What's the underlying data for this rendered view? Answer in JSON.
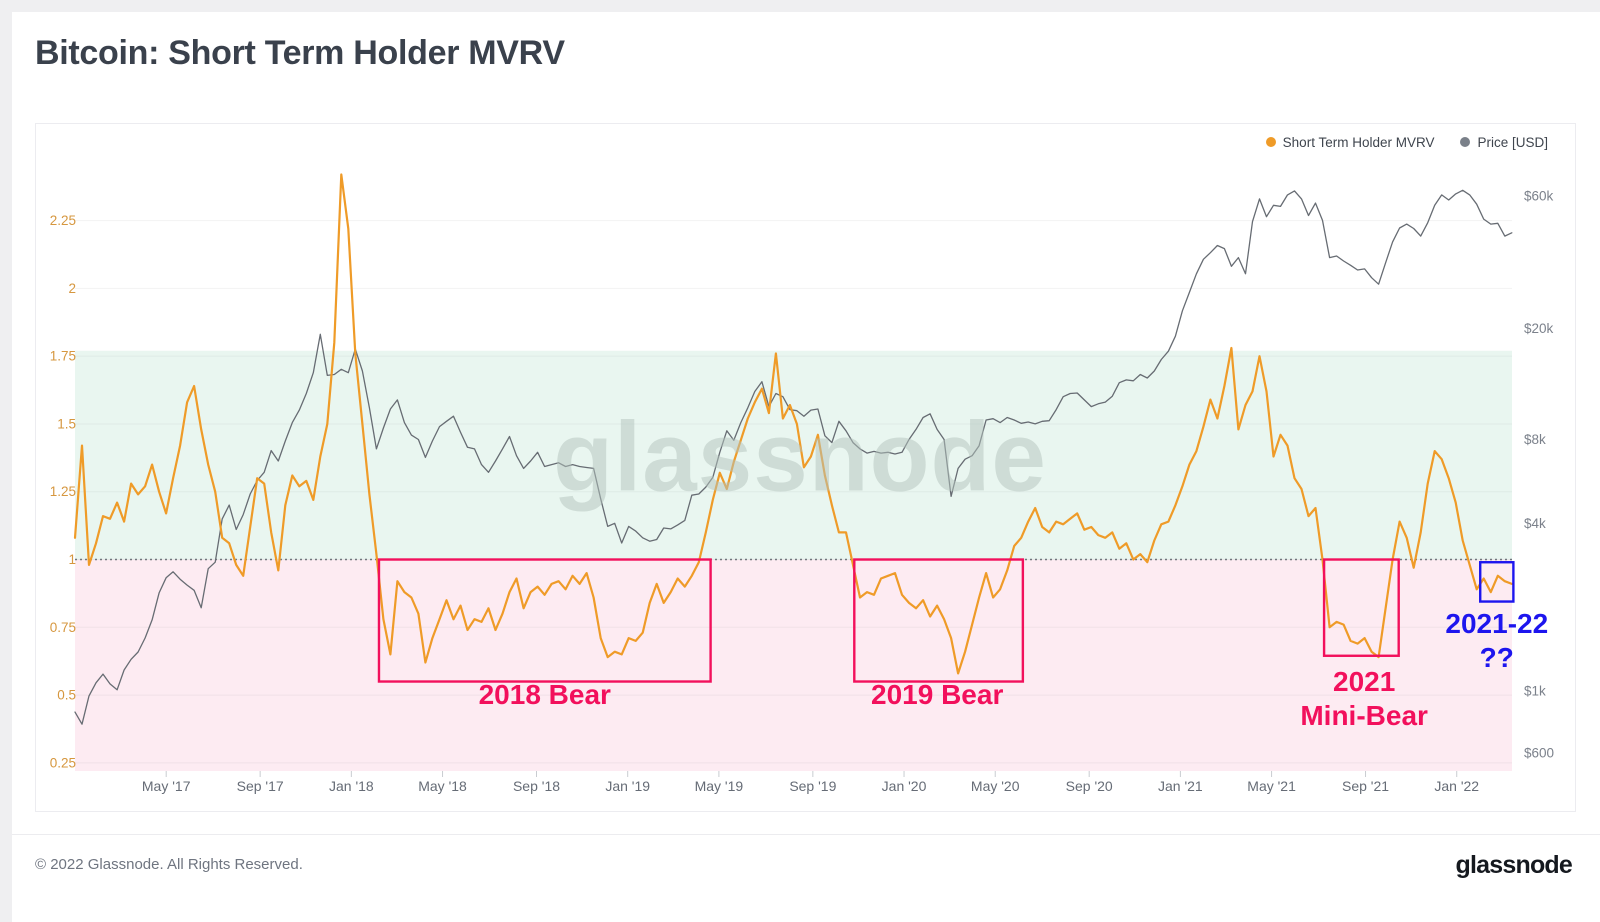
{
  "header": {
    "title": "Bitcoin: Short Term Holder MVRV"
  },
  "legend": [
    {
      "label": "Short Term Holder MVRV",
      "color": "#EF9B28"
    },
    {
      "label": "Price [USD]",
      "color": "#7A8089"
    }
  ],
  "watermark": "glassnode",
  "footer": {
    "copyright": "© 2022 Glassnode. All Rights Reserved.",
    "logo_text": "glassnode"
  },
  "chart_data": {
    "type": "line",
    "title": "Bitcoin: Short Term Holder MVRV",
    "x_axis": {
      "unit": "decimal_year",
      "min": 2017.0,
      "max": 2022.2,
      "ticks": [
        [
          "May '17",
          2017.33
        ],
        [
          "Sep '17",
          2017.67
        ],
        [
          "Jan '18",
          2018.0
        ],
        [
          "May '18",
          2018.33
        ],
        [
          "Sep '18",
          2018.67
        ],
        [
          "Jan '19",
          2019.0
        ],
        [
          "May '19",
          2019.33
        ],
        [
          "Sep '19",
          2019.67
        ],
        [
          "Jan '20",
          2020.0
        ],
        [
          "May '20",
          2020.33
        ],
        [
          "Sep '20",
          2020.67
        ],
        [
          "Jan '21",
          2021.0
        ],
        [
          "May '21",
          2021.33
        ],
        [
          "Sep '21",
          2021.67
        ],
        [
          "Jan '22",
          2022.0
        ]
      ]
    },
    "y_axis_left": {
      "label": "Short Term Holder MVRV",
      "scale": "linear",
      "min": 0.22,
      "max": 2.61,
      "tick_color": "#D6973F",
      "ticks": [
        0.25,
        0.5,
        0.75,
        1,
        1.25,
        1.5,
        1.75,
        2,
        2.25
      ]
    },
    "y_axis_right": {
      "label": "Price [USD]",
      "scale": "log",
      "min": 516,
      "max": 109600,
      "tick_color": "#7B818B",
      "ticks": [
        [
          "$60k",
          60000
        ],
        [
          "$20k",
          20000
        ],
        [
          "$8k",
          8000
        ],
        [
          "$4k",
          4000
        ],
        [
          "$1k",
          1000
        ],
        [
          "$600",
          600
        ]
      ]
    },
    "bands": [
      {
        "name": "above-cost-basis",
        "v_from": 1.0,
        "v_to": 1.77,
        "color": "#E9F6F0"
      },
      {
        "name": "below-cost-basis",
        "v_from": 0.22,
        "v_to": 1.0,
        "color": "#FDEBF2"
      }
    ],
    "threshold": {
      "v": 1.0,
      "color": "#71767D",
      "style": "dotted"
    },
    "grid": {
      "on": true,
      "color": "#9aa0a6",
      "opacity": 0.13
    },
    "series": [
      {
        "name": "Short Term Holder MVRV",
        "axis": "left",
        "color": "#EF9B28",
        "width": 2.2,
        "t_start": 2017.0,
        "t_step": 0.025362,
        "values": [
          1.08,
          1.42,
          0.98,
          1.06,
          1.16,
          1.15,
          1.21,
          1.14,
          1.28,
          1.24,
          1.27,
          1.35,
          1.25,
          1.17,
          1.3,
          1.42,
          1.58,
          1.64,
          1.48,
          1.35,
          1.25,
          1.08,
          1.06,
          0.98,
          0.94,
          1.12,
          1.3,
          1.28,
          1.1,
          0.96,
          1.2,
          1.31,
          1.27,
          1.29,
          1.22,
          1.38,
          1.5,
          1.8,
          2.42,
          2.22,
          1.76,
          1.5,
          1.24,
          1.02,
          0.78,
          0.65,
          0.92,
          0.88,
          0.86,
          0.8,
          0.62,
          0.71,
          0.78,
          0.85,
          0.78,
          0.83,
          0.74,
          0.78,
          0.77,
          0.82,
          0.74,
          0.8,
          0.88,
          0.93,
          0.82,
          0.88,
          0.9,
          0.87,
          0.91,
          0.92,
          0.89,
          0.94,
          0.91,
          0.95,
          0.86,
          0.71,
          0.64,
          0.66,
          0.65,
          0.71,
          0.7,
          0.73,
          0.84,
          0.91,
          0.84,
          0.88,
          0.93,
          0.9,
          0.94,
          0.99,
          1.1,
          1.22,
          1.32,
          1.26,
          1.36,
          1.44,
          1.52,
          1.58,
          1.63,
          1.54,
          1.76,
          1.52,
          1.57,
          1.5,
          1.34,
          1.38,
          1.46,
          1.31,
          1.2,
          1.1,
          1.1,
          0.98,
          0.86,
          0.88,
          0.87,
          0.93,
          0.94,
          0.95,
          0.87,
          0.84,
          0.82,
          0.85,
          0.79,
          0.83,
          0.78,
          0.71,
          0.58,
          0.66,
          0.76,
          0.86,
          0.95,
          0.86,
          0.89,
          0.96,
          1.05,
          1.08,
          1.14,
          1.19,
          1.12,
          1.1,
          1.14,
          1.13,
          1.15,
          1.17,
          1.11,
          1.12,
          1.09,
          1.08,
          1.1,
          1.04,
          1.06,
          1.0,
          1.02,
          0.99,
          1.07,
          1.13,
          1.14,
          1.2,
          1.27,
          1.35,
          1.4,
          1.49,
          1.59,
          1.52,
          1.64,
          1.78,
          1.48,
          1.57,
          1.62,
          1.75,
          1.62,
          1.38,
          1.46,
          1.42,
          1.3,
          1.26,
          1.16,
          1.19,
          1.0,
          0.75,
          0.77,
          0.76,
          0.7,
          0.69,
          0.71,
          0.66,
          0.64,
          0.82,
          1.0,
          1.14,
          1.08,
          0.97,
          1.1,
          1.28,
          1.4,
          1.37,
          1.3,
          1.21,
          1.07,
          0.98,
          0.89,
          0.93,
          0.88,
          0.94,
          0.92,
          0.91
        ]
      },
      {
        "name": "Price [USD]",
        "axis": "right",
        "color": "#676C73",
        "width": 1.3,
        "t_start": 2017.0,
        "t_step": 0.025362,
        "values": [
          840,
          760,
          960,
          1070,
          1150,
          1060,
          1010,
          1190,
          1300,
          1380,
          1550,
          1800,
          2250,
          2550,
          2680,
          2520,
          2400,
          2300,
          1990,
          2750,
          2900,
          4150,
          4650,
          3800,
          4300,
          5100,
          5700,
          6100,
          7300,
          6700,
          7900,
          9200,
          10200,
          11700,
          13900,
          19100,
          13600,
          13700,
          14300,
          13900,
          16900,
          14100,
          10400,
          7400,
          8800,
          10300,
          11100,
          9200,
          8300,
          8000,
          6900,
          7900,
          8900,
          9300,
          9700,
          8500,
          7500,
          7400,
          6500,
          6100,
          6700,
          7400,
          8200,
          7000,
          6300,
          6700,
          7200,
          6400,
          6500,
          6600,
          6400,
          6500,
          6400,
          6350,
          6300,
          4900,
          3900,
          4000,
          3400,
          3900,
          3750,
          3550,
          3450,
          3500,
          3850,
          3820,
          3950,
          4100,
          5050,
          5100,
          5400,
          5850,
          7200,
          8600,
          7950,
          9200,
          10400,
          11900,
          12900,
          10500,
          11700,
          11400,
          10250,
          10150,
          9700,
          10200,
          10300,
          8250,
          7800,
          9300,
          8600,
          7800,
          7400,
          7150,
          7250,
          7150,
          7200,
          7100,
          7200,
          8000,
          8700,
          9600,
          9900,
          8700,
          8000,
          5000,
          6300,
          6800,
          7000,
          7600,
          9400,
          9500,
          9200,
          9600,
          9400,
          9150,
          9250,
          9100,
          9300,
          9350,
          10250,
          11400,
          11700,
          11750,
          11100,
          10500,
          10750,
          10900,
          11450,
          12800,
          13100,
          13000,
          13700,
          13300,
          14100,
          15500,
          16600,
          18800,
          23200,
          27000,
          31500,
          35500,
          37500,
          39800,
          38800,
          33500,
          36000,
          31500,
          48500,
          58500,
          50500,
          55500,
          55000,
          60500,
          62500,
          58500,
          51000,
          56500,
          49000,
          36000,
          36500,
          35000,
          33800,
          32500,
          32800,
          30500,
          28900,
          34500,
          41000,
          46000,
          47500,
          45800,
          43000,
          48000,
          55500,
          60500,
          58000,
          61000,
          62800,
          60500,
          56000,
          49500,
          47500,
          47800,
          43000,
          44200
        ]
      }
    ],
    "annotations": [
      {
        "id": "bear-2018",
        "lines": [
          "2018 Bear"
        ],
        "color": "#F2105C",
        "t_start": 2018.1,
        "t_end": 2019.3,
        "v_top": 1.0,
        "v_bottom": 0.55,
        "label_t": 2018.7,
        "label_v": 0.5
      },
      {
        "id": "bear-2019",
        "lines": [
          "2019 Bear"
        ],
        "color": "#F2105C",
        "t_start": 2019.82,
        "t_end": 2020.43,
        "v_top": 1.0,
        "v_bottom": 0.55,
        "label_t": 2020.12,
        "label_v": 0.5
      },
      {
        "id": "mini-bear-2021",
        "lines": [
          "2021",
          "Mini-Bear"
        ],
        "color": "#F2105C",
        "t_start": 2021.52,
        "t_end": 2021.79,
        "v_top": 1.0,
        "v_bottom": 0.645,
        "label_t": 2021.665,
        "label_v": 0.485
      },
      {
        "id": "question-2021-22",
        "lines": [
          "2021-22",
          "??"
        ],
        "color": "#1D15EE",
        "t_start": 2022.085,
        "t_end": 2022.205,
        "v_top": 0.99,
        "v_bottom": 0.845,
        "label_t": 2022.145,
        "label_v": 0.7
      }
    ]
  }
}
